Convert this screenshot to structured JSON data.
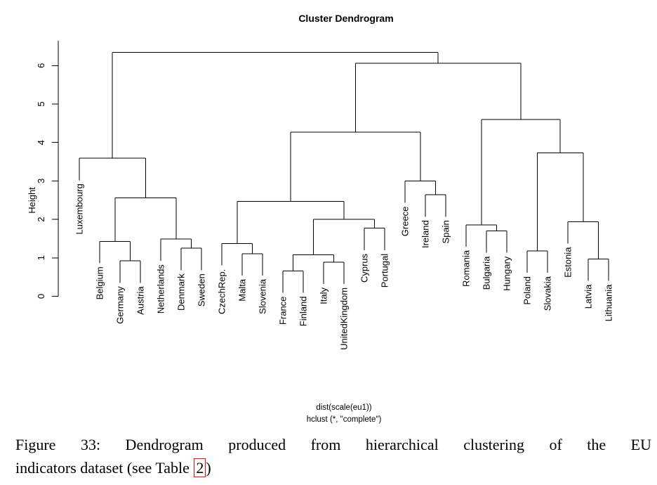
{
  "page": {
    "background": "#ffffff",
    "line_color": "#000000",
    "text_color": "#000000"
  },
  "chart_data": {
    "type": "dendrogram",
    "title": "Cluster Dendrogram",
    "ylabel": "Height",
    "yticks": [
      0,
      1,
      2,
      3,
      4,
      5,
      6
    ],
    "ylim": [
      0,
      6.5
    ],
    "grid": false,
    "legend": null,
    "caption_lines": [
      "dist(scale(eu1))",
      "hclust (*, \"complete\")"
    ],
    "hang": 0.57,
    "leaf_order": [
      "Luxembourg",
      "Belgium",
      "Germany",
      "Austria",
      "Netherlands",
      "Denmark",
      "Sweden",
      "CzechRep.",
      "Malta",
      "Slovenia",
      "France",
      "Finland",
      "Italy",
      "UnitedKingdom",
      "Cyprus",
      "Portugal",
      "Greece",
      "Ireland",
      "Spain",
      "Romania",
      "Bulgaria",
      "Hungary",
      "Poland",
      "Slovakia",
      "Estonia",
      "Latvia",
      "Lithuania"
    ],
    "merge_tree": {
      "h": 6.34,
      "children": [
        {
          "h": 3.59,
          "children": [
            "Luxembourg",
            {
              "h": 2.56,
              "children": [
                {
                  "h": 1.43,
                  "children": [
                    "Belgium",
                    {
                      "h": 0.92,
                      "children": [
                        "Germany",
                        "Austria"
                      ]
                    }
                  ]
                },
                {
                  "h": 1.49,
                  "children": [
                    "Netherlands",
                    {
                      "h": 1.25,
                      "children": [
                        "Denmark",
                        "Sweden"
                      ]
                    }
                  ]
                }
              ]
            }
          ]
        },
        {
          "h": 6.06,
          "children": [
            {
              "h": 4.27,
              "children": [
                {
                  "h": 2.47,
                  "children": [
                    {
                      "h": 1.37,
                      "children": [
                        "CzechRep.",
                        {
                          "h": 1.11,
                          "children": [
                            "Malta",
                            "Slovenia"
                          ]
                        }
                      ]
                    },
                    {
                      "h": 2.0,
                      "children": [
                        {
                          "h": 1.08,
                          "children": [
                            {
                              "h": 0.66,
                              "children": [
                                "France",
                                "Finland"
                              ]
                            },
                            {
                              "h": 0.89,
                              "children": [
                                "Italy",
                                "UnitedKingdom"
                              ]
                            }
                          ]
                        },
                        {
                          "h": 1.77,
                          "children": [
                            "Cyprus",
                            "Portugal"
                          ]
                        }
                      ]
                    }
                  ]
                },
                {
                  "h": 3.0,
                  "children": [
                    "Greece",
                    {
                      "h": 2.64,
                      "children": [
                        "Ireland",
                        "Spain"
                      ]
                    }
                  ]
                }
              ]
            },
            {
              "h": 4.6,
              "children": [
                {
                  "h": 1.86,
                  "children": [
                    "Romania",
                    {
                      "h": 1.7,
                      "children": [
                        "Bulgaria",
                        "Hungary"
                      ]
                    }
                  ]
                },
                {
                  "h": 3.73,
                  "children": [
                    {
                      "h": 1.18,
                      "children": [
                        "Poland",
                        "Slovakia"
                      ]
                    },
                    {
                      "h": 1.94,
                      "children": [
                        "Estonia",
                        {
                          "h": 0.97,
                          "children": [
                            "Latvia",
                            "Lithuania"
                          ]
                        }
                      ]
                    }
                  ]
                }
              ]
            }
          ]
        }
      ]
    }
  },
  "figure_caption": {
    "line1": "Figure 33:  Dendrogram produced from hierarchical clustering of the EU",
    "line2_prefix": "indicators dataset (see Table ",
    "link_text": "2",
    "line2_suffix": ")",
    "link_box_color": "#ff0000"
  }
}
